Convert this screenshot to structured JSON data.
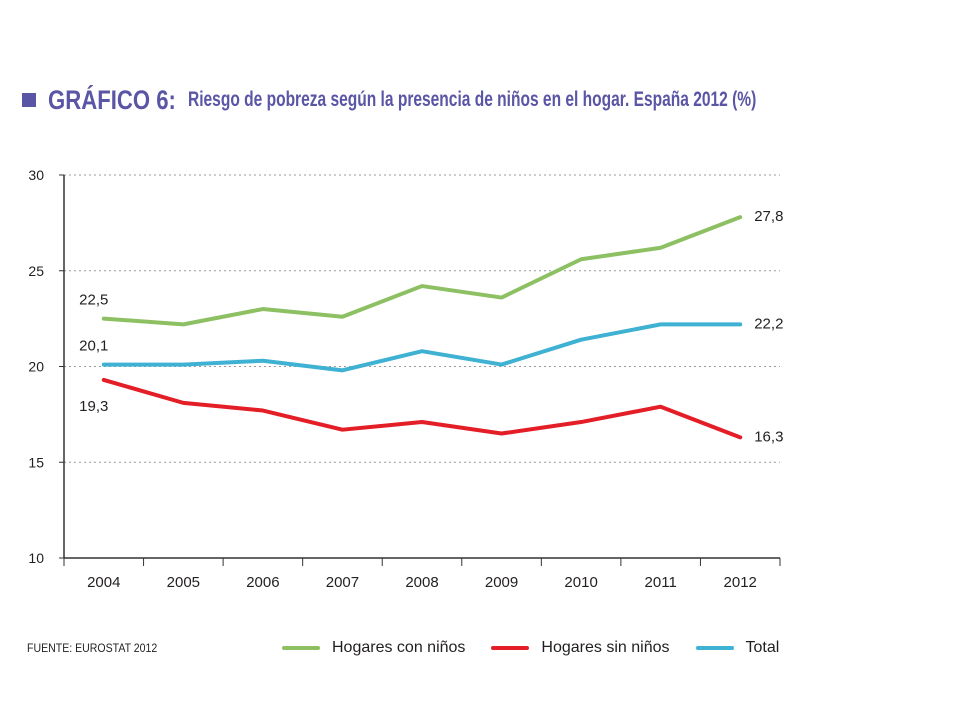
{
  "header": {
    "title_prefix": "GRÁFICO 6:",
    "title_text": "Riesgo de pobreza según la presencia de niños en el hogar. España 2012 (%)",
    "title_color": "#5b55a5"
  },
  "chart_data": {
    "type": "line",
    "categories": [
      "2004",
      "2005",
      "2006",
      "2007",
      "2008",
      "2009",
      "2010",
      "2011",
      "2012"
    ],
    "ylim": [
      10,
      30
    ],
    "yticks": [
      "10",
      "15",
      "20",
      "25",
      "30"
    ],
    "grid": "horizontal dotted",
    "legend_placement": "bottom",
    "series": [
      {
        "name": "Hogares con niños",
        "color": "#8dc063",
        "values": [
          22.5,
          22.2,
          23.0,
          22.6,
          24.2,
          23.6,
          25.6,
          26.2,
          27.8
        ]
      },
      {
        "name": "Hogares sin niños",
        "color": "#e41e26",
        "values": [
          19.3,
          18.1,
          17.7,
          16.7,
          17.1,
          16.5,
          17.1,
          17.9,
          16.3
        ]
      },
      {
        "name": "Total",
        "color": "#3fb1d3",
        "values": [
          20.1,
          20.1,
          20.3,
          19.8,
          20.8,
          20.1,
          21.4,
          22.2,
          22.2
        ]
      }
    ],
    "data_labels": [
      {
        "series": 0,
        "point": 0,
        "text": "22,5"
      },
      {
        "series": 0,
        "point": 8,
        "text": "27,8"
      },
      {
        "series": 2,
        "point": 0,
        "text": "20,1"
      },
      {
        "series": 2,
        "point": 8,
        "text": "22,2"
      },
      {
        "series": 1,
        "point": 0,
        "text": "19,3"
      },
      {
        "series": 1,
        "point": 8,
        "text": "16,3"
      }
    ]
  },
  "footer": {
    "source": "FUENTE: EUROSTAT 2012"
  }
}
